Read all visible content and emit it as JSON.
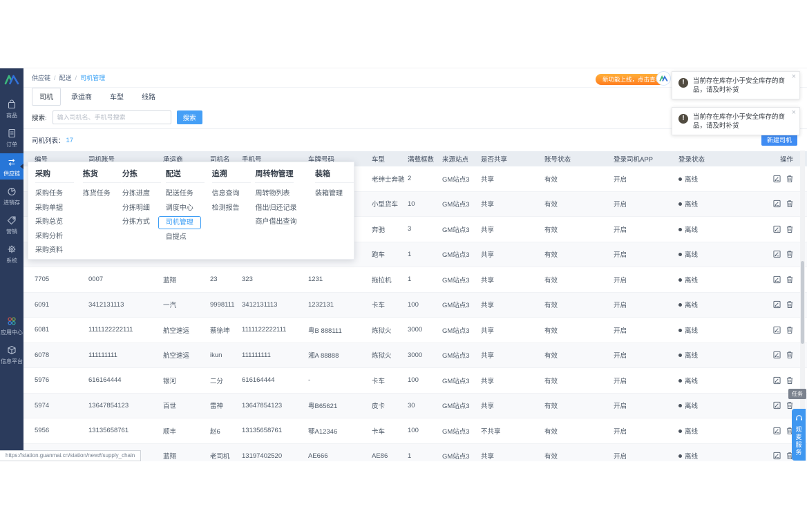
{
  "colors": {
    "accent_blue": "#3d9ef5",
    "sidebar_bg": "#2b3b5c",
    "sidebar_active": "#2776d8",
    "promo_orange": "#ff7d1f",
    "header_bg": "#e9edf2",
    "toast_icon": "#514b40"
  },
  "breadcrumb": {
    "items": [
      "供应链",
      "配送",
      "司机管理"
    ]
  },
  "header_right": {
    "promo_label": "新功能上线，点击查看",
    "avatar_icon": "guanmai-logo"
  },
  "toasts": [
    {
      "icon": "warning-icon",
      "text": "当前存在库存小于安全库存的商品，请及时补货",
      "close": "×"
    },
    {
      "icon": "warning-icon",
      "text": "当前存在库存小于安全库存的商品，请及时补货",
      "close": "×"
    }
  ],
  "sidebar": {
    "logo_icon": "guanmai-logo",
    "items": [
      {
        "label": "商品",
        "icon": "bag-icon",
        "active": false
      },
      {
        "label": "订单",
        "icon": "order-doc-icon",
        "active": false
      },
      {
        "label": "供应链",
        "icon": "exchange-arrows-icon",
        "active": true
      },
      {
        "label": "进销存",
        "icon": "pie-inventory-icon",
        "active": false
      },
      {
        "label": "营销",
        "icon": "price-tag-icon",
        "active": false
      },
      {
        "label": "系统",
        "icon": "gear-icon",
        "active": false
      },
      {
        "label": "应用中心",
        "icon": "app-center-circles-icon",
        "active": false
      },
      {
        "label": "信息平台",
        "icon": "cube-icon",
        "active": false
      }
    ]
  },
  "tabs": {
    "active_index": 0,
    "items": [
      {
        "label": "司机"
      },
      {
        "label": "承运商"
      },
      {
        "label": "车型"
      },
      {
        "label": "线路"
      }
    ]
  },
  "search": {
    "label": "搜索:",
    "placeholder": "输入司机名、手机号搜索",
    "button": "搜索"
  },
  "list": {
    "title": "司机列表：",
    "count": "17",
    "new_button": "新建司机"
  },
  "table": {
    "columns": [
      "编号",
      "司机账号",
      "承运商",
      "司机名",
      "手机号",
      "车牌号码",
      "车型",
      "满载框数",
      "来源站点",
      "是否共享",
      "账号状态",
      "登录司机APP",
      "登录状态",
      "操作"
    ],
    "row_actions": [
      "edit-icon",
      "trash-icon"
    ],
    "offline_label": "离线",
    "rows": [
      [
        "",
        "",
        "",
        "",
        "",
        "",
        "老绅士奔驰",
        "2",
        "GM站点3",
        "共享",
        "有效",
        "开启",
        "离线"
      ],
      [
        "",
        "",
        "",
        "",
        "",
        "",
        "小型货车",
        "10",
        "GM站点3",
        "共享",
        "有效",
        "开启",
        "离线"
      ],
      [
        "",
        "",
        "",
        "",
        "",
        "",
        "奔驰",
        "3",
        "GM站点3",
        "共享",
        "有效",
        "开启",
        "离线"
      ],
      [
        "",
        "",
        "",
        "",
        "",
        "",
        "跑车",
        "1",
        "GM站点3",
        "共享",
        "有效",
        "开启",
        "离线"
      ],
      [
        "7705",
        "0007",
        "蓝翔",
        "23",
        "323",
        "1231",
        "拖拉机",
        "1",
        "GM站点3",
        "共享",
        "有效",
        "开启",
        "离线"
      ],
      [
        "6091",
        "3412131113",
        "一汽",
        "9998111",
        "3412131113",
        "1232131",
        "卡车",
        "100",
        "GM站点3",
        "共享",
        "有效",
        "开启",
        "离线"
      ],
      [
        "6081",
        "1111122222111",
        "航空速运",
        "蔡徐坤",
        "1111122222111",
        "粤B 888111",
        "炼狱火",
        "3000",
        "GM站点3",
        "共享",
        "有效",
        "开启",
        "离线"
      ],
      [
        "6078",
        "111111111",
        "航空速运",
        "ikun",
        "111111111",
        "湘A 88888",
        "炼狱火",
        "3000",
        "GM站点3",
        "共享",
        "有效",
        "开启",
        "离线"
      ],
      [
        "5976",
        "616164444",
        "银河",
        "二分",
        "616164444",
        "-",
        "卡车",
        "100",
        "GM站点3",
        "共享",
        "有效",
        "开启",
        "离线"
      ],
      [
        "5974",
        "13647854123",
        "百世",
        "雷神",
        "13647854123",
        "粤B65621",
        "皮卡",
        "30",
        "GM站点3",
        "共享",
        "有效",
        "开启",
        "离线"
      ],
      [
        "5956",
        "13135658761",
        "顺丰",
        "赵6",
        "13135658761",
        "鄂A12346",
        "卡车",
        "100",
        "GM站点3",
        "不共享",
        "有效",
        "开启",
        "离线"
      ],
      [
        "",
        "",
        "蓝翔",
        "老司机",
        "13197402520",
        "AE666",
        "AE86",
        "1",
        "GM站点3",
        "共享",
        "有效",
        "开启",
        "离线"
      ]
    ]
  },
  "mega_menu": {
    "highlighted_item": "司机管理",
    "columns": [
      {
        "title": "采购",
        "items": [
          "采购任务",
          "采购单据",
          "采购总览",
          "采购分析",
          "采购资料"
        ]
      },
      {
        "title": "拣货",
        "items": [
          "拣货任务"
        ]
      },
      {
        "title": "分拣",
        "items": [
          "分拣进度",
          "分拣明细",
          "分拣方式"
        ]
      },
      {
        "title": "配送",
        "items": [
          "配送任务",
          "调度中心",
          "司机管理",
          "自提点"
        ]
      },
      {
        "title": "追溯",
        "items": [
          "信息查询",
          "检测报告"
        ]
      },
      {
        "title": "周转物管理",
        "items": [
          "周转物列表",
          "借出归还记录",
          "商户借出查询"
        ]
      },
      {
        "title": "装箱",
        "items": [
          "装箱管理"
        ]
      }
    ]
  },
  "status_url": "https://station.guanmai.cn/station/new#/supply_chain",
  "floats": {
    "task_label": "任务",
    "service_label": "观麦服务",
    "service_icon": "headset-icon"
  }
}
